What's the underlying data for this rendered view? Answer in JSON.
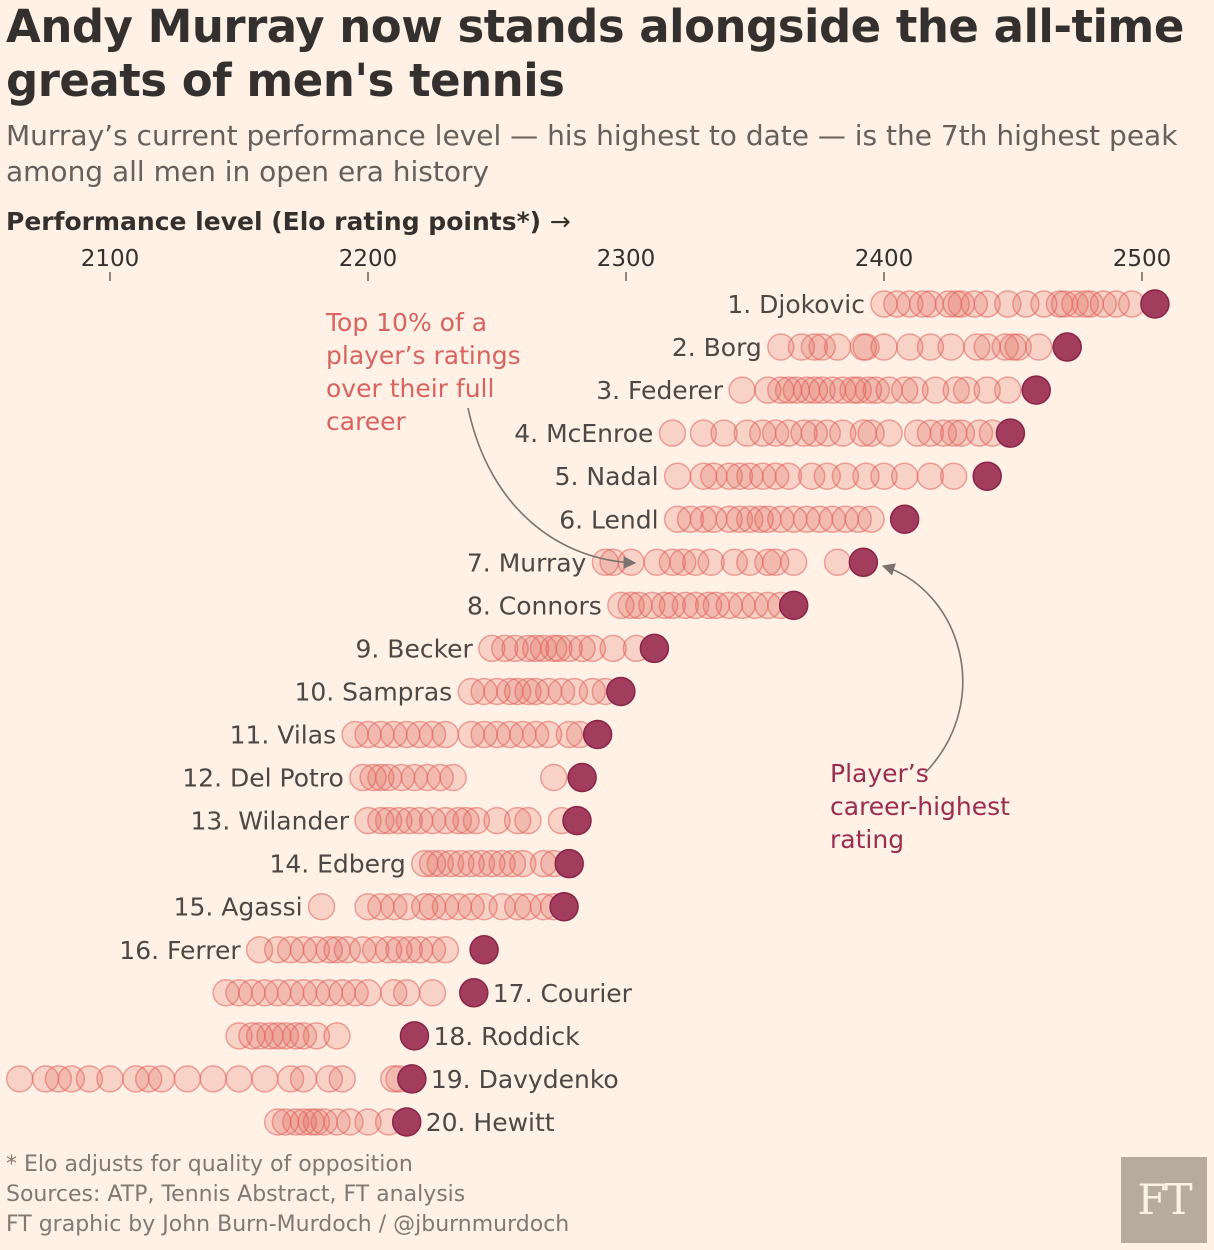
{
  "title": "Andy Murray now stands alongside the all-time greats of men's tennis",
  "subtitle": "Murray’s current performance level — his highest to date — is the 7th highest peak among all men in open era history",
  "axis_label": "Performance level (Elo rating points*)",
  "axis_arrow": "→",
  "colors": {
    "background": "#fff1e5",
    "rating_dot": "#e0625c",
    "peak_dot": "#a23d5e",
    "annotation_top": "#d86360",
    "annotation_peak": "#9b2c4f",
    "arrow": "#7a7370"
  },
  "annotations": {
    "top10_lines": [
      "Top 10% of a",
      "player’s ratings",
      "over their full",
      "career"
    ],
    "peak_lines": [
      "Player’s",
      "career-highest",
      "rating"
    ]
  },
  "footer": {
    "note": "* Elo adjusts for quality of opposition",
    "sources": "Sources: ATP, Tennis Abstract, FT analysis",
    "credit": "FT graphic by John Burn-Murdoch / @jburnmurdoch"
  },
  "logo_text": "FT",
  "chart_data": {
    "type": "scatter",
    "xlabel": "Performance level (Elo rating points*)",
    "xlim": [
      2060,
      2510
    ],
    "xticks": [
      2100,
      2200,
      2300,
      2400,
      2500
    ],
    "series_label": "Top 10% of a player’s ratings over their full career",
    "peak_label": "Player’s career-highest rating",
    "players": [
      {
        "label": "1. Djokovic",
        "label_side": "left",
        "peak": 2505,
        "ratings": [
          2400,
          2405,
          2410,
          2415,
          2418,
          2425,
          2428,
          2430,
          2435,
          2440,
          2448,
          2455,
          2462,
          2468,
          2470,
          2474,
          2478,
          2480,
          2485,
          2490,
          2496
        ]
      },
      {
        "label": "2. Borg",
        "label_side": "left",
        "peak": 2471,
        "ratings": [
          2360,
          2368,
          2373,
          2376,
          2382,
          2392,
          2393,
          2400,
          2410,
          2418,
          2426,
          2436,
          2440,
          2447,
          2450,
          2452,
          2460
        ]
      },
      {
        "label": "3. Federer",
        "label_side": "left",
        "peak": 2459,
        "ratings": [
          2345,
          2355,
          2360,
          2363,
          2366,
          2370,
          2373,
          2376,
          2380,
          2384,
          2388,
          2390,
          2394,
          2397,
          2402,
          2408,
          2412,
          2420,
          2428,
          2432,
          2440,
          2448
        ]
      },
      {
        "label": "4. McEnroe",
        "label_side": "left",
        "peak": 2449,
        "ratings": [
          2318,
          2330,
          2338,
          2347,
          2353,
          2358,
          2363,
          2369,
          2373,
          2378,
          2384,
          2392,
          2395,
          2402,
          2413,
          2418,
          2423,
          2427,
          2430,
          2437,
          2442
        ]
      },
      {
        "label": "5. Nadal",
        "label_side": "left",
        "peak": 2440,
        "ratings": [
          2320,
          2330,
          2334,
          2340,
          2344,
          2348,
          2353,
          2358,
          2363,
          2372,
          2378,
          2385,
          2393,
          2400,
          2408,
          2418,
          2427
        ]
      },
      {
        "label": "6. Lendl",
        "label_side": "left",
        "peak": 2408,
        "ratings": [
          2320,
          2325,
          2330,
          2334,
          2340,
          2344,
          2348,
          2352,
          2355,
          2360,
          2365,
          2370,
          2375,
          2380,
          2385,
          2390,
          2395
        ]
      },
      {
        "label": "7. Murray",
        "label_side": "left",
        "peak": 2392,
        "ratings": [
          2292,
          2295,
          2302,
          2312,
          2318,
          2322,
          2327,
          2333,
          2342,
          2348,
          2355,
          2358,
          2365,
          2382
        ]
      },
      {
        "label": "8. Connors",
        "label_side": "left",
        "peak": 2365,
        "ratings": [
          2298,
          2302,
          2305,
          2310,
          2315,
          2318,
          2323,
          2327,
          2332,
          2335,
          2340,
          2345,
          2350,
          2355,
          2360
        ]
      },
      {
        "label": "9. Becker",
        "label_side": "left",
        "peak": 2311,
        "ratings": [
          2248,
          2253,
          2257,
          2262,
          2265,
          2268,
          2272,
          2274,
          2278,
          2283,
          2287,
          2295,
          2304
        ]
      },
      {
        "label": "10. Sampras",
        "label_side": "left",
        "peak": 2298,
        "ratings": [
          2240,
          2245,
          2250,
          2255,
          2258,
          2262,
          2265,
          2270,
          2275,
          2280,
          2287,
          2292
        ]
      },
      {
        "label": "11. Vilas",
        "label_side": "left",
        "peak": 2289,
        "ratings": [
          2195,
          2200,
          2205,
          2210,
          2215,
          2220,
          2225,
          2230,
          2240,
          2245,
          2250,
          2255,
          2260,
          2265,
          2270,
          2278,
          2282
        ]
      },
      {
        "label": "12. Del Potro",
        "label_side": "left",
        "peak": 2283,
        "ratings": [
          2198,
          2202,
          2205,
          2208,
          2213,
          2218,
          2223,
          2228,
          2233,
          2272
        ]
      },
      {
        "label": "13. Wilander",
        "label_side": "left",
        "peak": 2281,
        "ratings": [
          2200,
          2205,
          2208,
          2212,
          2216,
          2220,
          2225,
          2230,
          2235,
          2238,
          2242,
          2250,
          2258,
          2262,
          2275
        ]
      },
      {
        "label": "14. Edberg",
        "label_side": "left",
        "peak": 2278,
        "ratings": [
          2222,
          2225,
          2228,
          2232,
          2236,
          2240,
          2244,
          2248,
          2252,
          2256,
          2260,
          2268,
          2272
        ]
      },
      {
        "label": "15. Agassi",
        "label_side": "left",
        "peak": 2276,
        "ratings": [
          2182,
          2200,
          2205,
          2210,
          2215,
          2222,
          2225,
          2230,
          2235,
          2240,
          2245,
          2252,
          2258,
          2262,
          2268,
          2272
        ]
      },
      {
        "label": "16. Ferrer",
        "label_side": "left",
        "peak": 2245,
        "ratings": [
          2158,
          2165,
          2170,
          2175,
          2180,
          2185,
          2188,
          2192,
          2198,
          2203,
          2208,
          2212,
          2216,
          2220,
          2225,
          2230
        ]
      },
      {
        "label": "17. Courier",
        "label_side": "right",
        "peak": 2241,
        "ratings": [
          2145,
          2150,
          2155,
          2160,
          2165,
          2170,
          2175,
          2180,
          2185,
          2190,
          2195,
          2200,
          2210,
          2215,
          2225
        ]
      },
      {
        "label": "18. Roddick",
        "label_side": "right",
        "peak": 2218,
        "ratings": [
          2150,
          2155,
          2158,
          2162,
          2165,
          2168,
          2172,
          2175,
          2180,
          2188
        ]
      },
      {
        "label": "19. Davydenko",
        "label_side": "right",
        "peak": 2217,
        "ratings": [
          2065,
          2075,
          2080,
          2085,
          2092,
          2100,
          2110,
          2115,
          2120,
          2130,
          2140,
          2150,
          2160,
          2170,
          2175,
          2185,
          2190,
          2210,
          2212
        ]
      },
      {
        "label": "20. Hewitt",
        "label_side": "right",
        "peak": 2215,
        "ratings": [
          2165,
          2168,
          2172,
          2175,
          2178,
          2180,
          2183,
          2188,
          2193,
          2200,
          2208
        ]
      }
    ]
  }
}
